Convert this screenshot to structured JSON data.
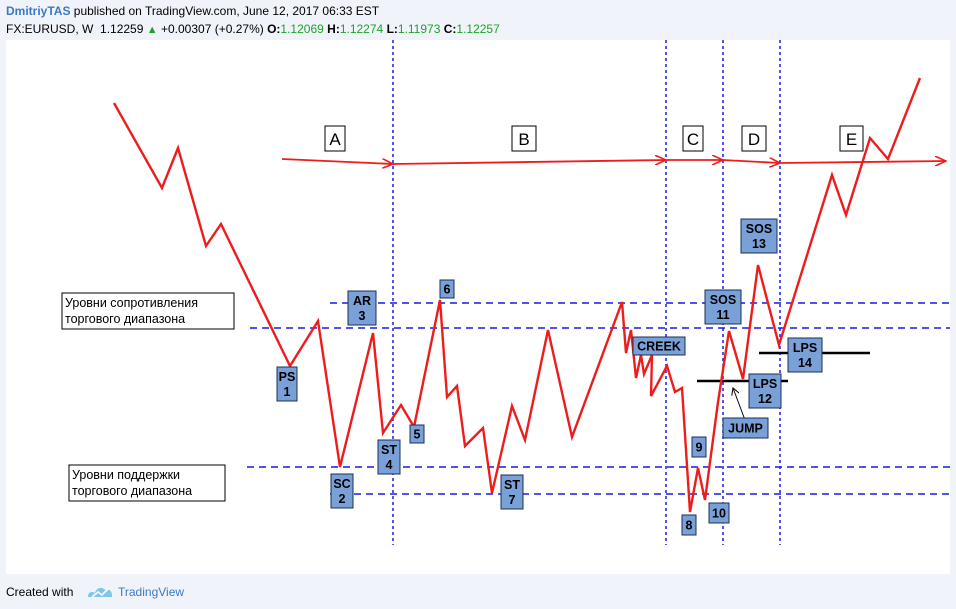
{
  "header": {
    "author": "DmitriyTAS",
    "published": " published on TradingView.com, June 12, 2017 06:33 EST",
    "symbol": "FX:EURUSD, W",
    "price": "1.12259",
    "change": "+0.00307 (+0.27%)",
    "o_label": "O:",
    "o_value": "1.12069",
    "h_label": "H:",
    "h_value": "1.12274",
    "l_label": "L:",
    "l_value": "1.11973",
    "c_label": "C:",
    "c_value": "1.12257"
  },
  "footer": {
    "created_with": "Created with",
    "brand": "TradingView"
  },
  "colors": {
    "price_line": "#ee1c1c",
    "level_line": "#1a1ae6",
    "label_box": "#7aa0d8",
    "accent": "#3c78c8"
  },
  "chart_data": {
    "type": "line",
    "title": "",
    "phases": [
      "A",
      "B",
      "C",
      "D",
      "E"
    ],
    "level_notes": {
      "resistance": "Уровни сопротивления\nторгового диапазона",
      "support": "Уровни поддержки\nторгового диапазона"
    },
    "events": [
      {
        "text": "PS\n1"
      },
      {
        "text": "SC\n2"
      },
      {
        "text": "AR\n3"
      },
      {
        "text": "ST\n4"
      },
      {
        "text": "5"
      },
      {
        "text": "6"
      },
      {
        "text": "ST\n7"
      },
      {
        "text": "CREEK"
      },
      {
        "text": "8"
      },
      {
        "text": "9"
      },
      {
        "text": "10"
      },
      {
        "text": "SOS\n11"
      },
      {
        "text": "LPS\n12"
      },
      {
        "text": "JUMP"
      },
      {
        "text": "SOS\n13"
      },
      {
        "text": "LPS\n14"
      }
    ]
  }
}
